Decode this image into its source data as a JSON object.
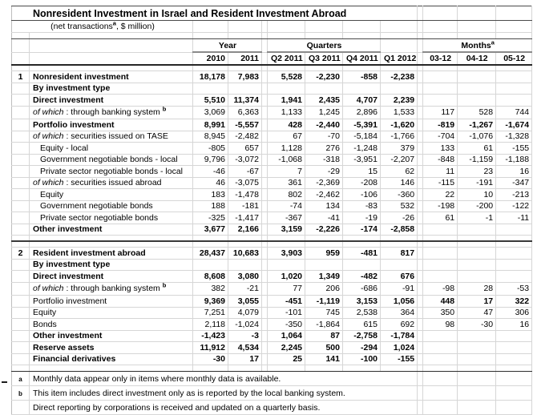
{
  "title": "Nonresident Investment in Israel and Resident Investment Abroad",
  "subtitle": {
    "pre": "(net transactions",
    "sup": "a",
    "post": ", $ million)"
  },
  "groups": {
    "year": "Year",
    "quarters": "Quarters",
    "months": "Months",
    "months_sup": "a"
  },
  "columns": [
    "2010",
    "2011",
    "Q2 2011",
    "Q3 2011",
    "Q4 2011",
    "Q1 2012",
    "03-12",
    "04-12",
    "05-12"
  ],
  "ofwhich_label": "of which",
  "ofwhich_sep": " : ",
  "colors": {
    "grid": "#d6d6d6",
    "group_underline": "#8a8a8a",
    "heavy_rule": "#262626",
    "text": "#000000"
  },
  "sections": [
    {
      "number": "1",
      "rows": [
        {
          "label": "Nonresident investment",
          "bold": true,
          "values": [
            "18,178",
            "7,983",
            "5,528",
            "-2,230",
            "-858",
            "-2,238",
            "",
            "",
            ""
          ]
        },
        {
          "label": "By investment type",
          "bold": true,
          "values": [
            "",
            "",
            "",
            "",
            "",
            "",
            "",
            "",
            ""
          ]
        },
        {
          "label": "Direct investment",
          "bold": true,
          "values": [
            "5,510",
            "11,374",
            "1,941",
            "2,435",
            "4,707",
            "2,239",
            "",
            "",
            ""
          ]
        },
        {
          "label": "through banking system",
          "ofwhich": true,
          "sup": "b",
          "values": [
            "3,069",
            "6,363",
            "1,133",
            "1,245",
            "2,896",
            "1,533",
            "117",
            "528",
            "744"
          ]
        },
        {
          "label": "Portfolio investment",
          "bold": true,
          "values": [
            "8,991",
            "-5,557",
            "428",
            "-2,440",
            "-5,391",
            "-1,620",
            "-819",
            "-1,267",
            "-1,674"
          ]
        },
        {
          "label": "securities issued on TASE",
          "ofwhich": true,
          "values": [
            "8,945",
            "-2,482",
            "67",
            "-70",
            "-5,184",
            "-1,766",
            "-704",
            "-1,076",
            "-1,328"
          ]
        },
        {
          "label": "Equity - local",
          "indent": true,
          "values": [
            "-805",
            "657",
            "1,128",
            "276",
            "-1,248",
            "379",
            "133",
            "61",
            "-155"
          ]
        },
        {
          "label": "Government negotiable bonds - local",
          "indent": true,
          "values": [
            "9,796",
            "-3,072",
            "-1,068",
            "-318",
            "-3,951",
            "-2,207",
            "-848",
            "-1,159",
            "-1,188"
          ]
        },
        {
          "label": "Private sector negotiable bonds - local",
          "indent": true,
          "values": [
            "-46",
            "-67",
            "7",
            "-29",
            "15",
            "62",
            "11",
            "23",
            "16"
          ]
        },
        {
          "label": "securities issued abroad",
          "ofwhich": true,
          "values": [
            "46",
            "-3,075",
            "361",
            "-2,369",
            "-208",
            "146",
            "-115",
            "-191",
            "-347"
          ]
        },
        {
          "label": "Equity",
          "indent": true,
          "values": [
            "183",
            "-1,478",
            "802",
            "-2,462",
            "-106",
            "-360",
            "22",
            "10",
            "-213"
          ]
        },
        {
          "label": "Government negotiable bonds",
          "indent": true,
          "values": [
            "188",
            "-181",
            "-74",
            "134",
            "-83",
            "532",
            "-198",
            "-200",
            "-122"
          ]
        },
        {
          "label": "Private sector negotiable bonds",
          "indent": true,
          "values": [
            "-325",
            "-1,417",
            "-367",
            "-41",
            "-19",
            "-26",
            "61",
            "-1",
            "-11"
          ]
        },
        {
          "label": "Other investment",
          "bold": true,
          "values": [
            "3,677",
            "2,166",
            "3,159",
            "-2,226",
            "-174",
            "-2,858",
            "",
            "",
            ""
          ]
        }
      ]
    },
    {
      "number": "2",
      "rows": [
        {
          "label": "Resident investment abroad",
          "bold": true,
          "values": [
            "28,437",
            "10,683",
            "3,903",
            "959",
            "-481",
            "817",
            "",
            "",
            ""
          ]
        },
        {
          "label": "By investment type",
          "bold": true,
          "values": [
            "",
            "",
            "",
            "",
            "",
            "",
            "",
            "",
            ""
          ]
        },
        {
          "label": "Direct investment",
          "bold": true,
          "values": [
            "8,608",
            "3,080",
            "1,020",
            "1,349",
            "-482",
            "676",
            "",
            "",
            ""
          ]
        },
        {
          "label": "through banking system",
          "ofwhich": true,
          "sup": "b",
          "values": [
            "382",
            "-21",
            "77",
            "206",
            "-686",
            "-91",
            "-98",
            "28",
            "-53"
          ]
        },
        {
          "label": "Portfolio investment",
          "bold_values": true,
          "values": [
            "9,369",
            "3,055",
            "-451",
            "-1,119",
            "3,153",
            "1,056",
            "448",
            "17",
            "322"
          ]
        },
        {
          "label": "Equity",
          "values": [
            "7,251",
            "4,079",
            "-101",
            "745",
            "2,538",
            "364",
            "350",
            "47",
            "306"
          ]
        },
        {
          "label": "Bonds",
          "values": [
            "2,118",
            "-1,024",
            "-350",
            "-1,864",
            "615",
            "692",
            "98",
            "-30",
            "16"
          ]
        },
        {
          "label": "Other investment",
          "bold": true,
          "values": [
            "-1,423",
            "-3",
            "1,064",
            "87",
            "-2,758",
            "-1,784",
            "",
            "",
            ""
          ]
        },
        {
          "label": "Reserve assets",
          "bold": true,
          "values": [
            "11,912",
            "4,534",
            "2,245",
            "500",
            "-294",
            "1,024",
            "",
            "",
            ""
          ]
        },
        {
          "label": "Financial derivatives",
          "bold": true,
          "values": [
            "-30",
            "17",
            "25",
            "141",
            "-100",
            "-155",
            "",
            "",
            ""
          ]
        }
      ]
    }
  ],
  "footnotes": [
    {
      "marker": "a",
      "text": "Monthly data appear only in items where monthly data is available."
    },
    {
      "marker": "b",
      "text": "This item includes direct investment only as is reported by the local banking system."
    },
    {
      "marker": "",
      "text": "Direct reporting by corporations is received and updated on a quarterly basis."
    }
  ]
}
